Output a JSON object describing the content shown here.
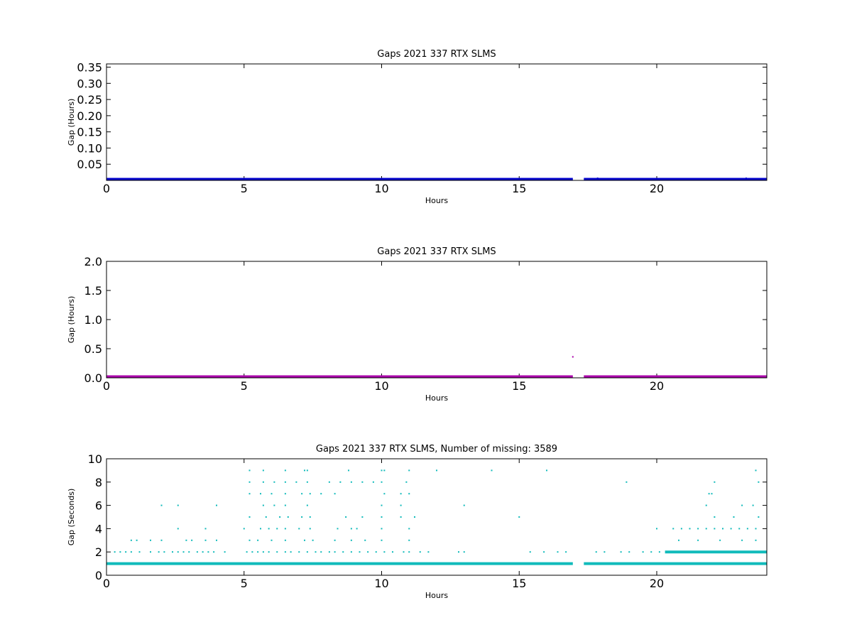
{
  "chart_data": [
    {
      "type": "scatter",
      "title": "Gaps 2021 337 RTX  SLMS",
      "xlabel": "Hours",
      "ylabel": "Gap (Hours)",
      "xlim": [
        0,
        24
      ],
      "ylim": [
        0,
        0.36
      ],
      "xticks": [
        "0",
        "5",
        "10",
        "15",
        "20"
      ],
      "yticks": [
        "0.05",
        "0.10",
        "0.15",
        "0.20",
        "0.25",
        "0.30",
        "0.35"
      ],
      "color": "#0000cc",
      "series": [
        {
          "segments": [
            [
              0,
              16.95,
              0.0003
            ],
            [
              17.35,
              24,
              0.0003
            ]
          ],
          "points": [
            [
              17.85,
              0.0008
            ],
            [
              23.25,
              0.001
            ]
          ]
        }
      ]
    },
    {
      "type": "scatter",
      "title": "Gaps 2021 337 RTX  SLMS",
      "xlabel": "Hours",
      "ylabel": "Gap (Hours)",
      "xlim": [
        0,
        24
      ],
      "ylim": [
        0,
        2.0
      ],
      "xticks": [
        "0",
        "5",
        "10",
        "15",
        "20"
      ],
      "yticks": [
        "0.0",
        "0.5",
        "1.0",
        "1.5",
        "2.0"
      ],
      "color": "#aa00aa",
      "series": [
        {
          "segments": [
            [
              0,
              16.95,
              0.0003
            ],
            [
              17.35,
              24,
              0.0003
            ]
          ],
          "points": [
            [
              16.95,
              0.36
            ]
          ]
        }
      ]
    },
    {
      "type": "scatter",
      "title": "Gaps 2021 337 RTX  SLMS, Number of missing: 3589",
      "xlabel": "Hours",
      "ylabel": "Gap (Seconds)",
      "xlim": [
        0,
        24
      ],
      "ylim": [
        0,
        10
      ],
      "xticks": [
        "0",
        "5",
        "10",
        "15",
        "20"
      ],
      "yticks": [
        "0",
        "2",
        "4",
        "6",
        "8",
        "10"
      ],
      "color": "#11bbbb",
      "series": [
        {
          "segments": [
            [
              0,
              16.95,
              1
            ],
            [
              17.35,
              24,
              1
            ],
            [
              20.3,
              24,
              2
            ]
          ],
          "points": [
            [
              0.3,
              2
            ],
            [
              0.5,
              2
            ],
            [
              0.7,
              2
            ],
            [
              0.9,
              2
            ],
            [
              1.2,
              2
            ],
            [
              1.6,
              2
            ],
            [
              1.9,
              2
            ],
            [
              2.1,
              2
            ],
            [
              2.4,
              2
            ],
            [
              2.6,
              2
            ],
            [
              2.8,
              2
            ],
            [
              3.0,
              2
            ],
            [
              3.3,
              2
            ],
            [
              3.5,
              2
            ],
            [
              3.7,
              2
            ],
            [
              3.9,
              2
            ],
            [
              4.3,
              2
            ],
            [
              5.1,
              2
            ],
            [
              5.3,
              2
            ],
            [
              5.5,
              2
            ],
            [
              5.7,
              2
            ],
            [
              5.9,
              2
            ],
            [
              6.2,
              2
            ],
            [
              6.5,
              2
            ],
            [
              6.7,
              2
            ],
            [
              7.0,
              2
            ],
            [
              7.3,
              2
            ],
            [
              7.6,
              2
            ],
            [
              7.8,
              2
            ],
            [
              8.1,
              2
            ],
            [
              8.3,
              2
            ],
            [
              8.6,
              2
            ],
            [
              8.9,
              2
            ],
            [
              9.2,
              2
            ],
            [
              9.5,
              2
            ],
            [
              9.8,
              2
            ],
            [
              10.1,
              2
            ],
            [
              10.4,
              2
            ],
            [
              10.8,
              2
            ],
            [
              11.0,
              2
            ],
            [
              11.4,
              2
            ],
            [
              11.7,
              2
            ],
            [
              12.8,
              2
            ],
            [
              13.0,
              2
            ],
            [
              15.4,
              2
            ],
            [
              15.9,
              2
            ],
            [
              16.4,
              2
            ],
            [
              16.7,
              2
            ],
            [
              17.8,
              2
            ],
            [
              18.1,
              2
            ],
            [
              18.7,
              2
            ],
            [
              19.0,
              2
            ],
            [
              19.5,
              2
            ],
            [
              19.8,
              2
            ],
            [
              20.1,
              2
            ],
            [
              0.9,
              3
            ],
            [
              1.1,
              3
            ],
            [
              1.6,
              3
            ],
            [
              2.0,
              3
            ],
            [
              2.9,
              3
            ],
            [
              3.1,
              3
            ],
            [
              3.6,
              3
            ],
            [
              4.0,
              3
            ],
            [
              5.2,
              3
            ],
            [
              5.5,
              3
            ],
            [
              6.0,
              3
            ],
            [
              6.5,
              3
            ],
            [
              7.2,
              3
            ],
            [
              7.5,
              3
            ],
            [
              8.3,
              3
            ],
            [
              8.9,
              3
            ],
            [
              9.4,
              3
            ],
            [
              10.0,
              3
            ],
            [
              11.0,
              3
            ],
            [
              20.8,
              3
            ],
            [
              21.5,
              3
            ],
            [
              22.3,
              3
            ],
            [
              23.1,
              3
            ],
            [
              23.6,
              3
            ],
            [
              2.6,
              4
            ],
            [
              3.6,
              4
            ],
            [
              5.0,
              4
            ],
            [
              5.6,
              4
            ],
            [
              5.9,
              4
            ],
            [
              6.2,
              4
            ],
            [
              6.5,
              4
            ],
            [
              7.0,
              4
            ],
            [
              7.4,
              4
            ],
            [
              8.4,
              4
            ],
            [
              8.9,
              4
            ],
            [
              9.1,
              4
            ],
            [
              10.0,
              4
            ],
            [
              11.0,
              4
            ],
            [
              20.0,
              4
            ],
            [
              20.6,
              4
            ],
            [
              20.9,
              4
            ],
            [
              21.2,
              4
            ],
            [
              21.5,
              4
            ],
            [
              21.8,
              4
            ],
            [
              22.1,
              4
            ],
            [
              22.4,
              4
            ],
            [
              22.7,
              4
            ],
            [
              23.0,
              4
            ],
            [
              23.3,
              4
            ],
            [
              23.6,
              4
            ],
            [
              5.2,
              5
            ],
            [
              5.8,
              5
            ],
            [
              6.3,
              5
            ],
            [
              6.6,
              5
            ],
            [
              7.1,
              5
            ],
            [
              7.4,
              5
            ],
            [
              8.7,
              5
            ],
            [
              9.3,
              5
            ],
            [
              10.0,
              5
            ],
            [
              10.7,
              5
            ],
            [
              11.2,
              5
            ],
            [
              15.0,
              5
            ],
            [
              22.1,
              5
            ],
            [
              22.8,
              5
            ],
            [
              23.7,
              5
            ],
            [
              2.0,
              6
            ],
            [
              2.6,
              6
            ],
            [
              4.0,
              6
            ],
            [
              5.7,
              6
            ],
            [
              6.1,
              6
            ],
            [
              6.5,
              6
            ],
            [
              7.3,
              6
            ],
            [
              10.0,
              6
            ],
            [
              10.7,
              6
            ],
            [
              13.0,
              6
            ],
            [
              21.8,
              6
            ],
            [
              23.1,
              6
            ],
            [
              23.5,
              6
            ],
            [
              5.2,
              7
            ],
            [
              5.6,
              7
            ],
            [
              6.0,
              7
            ],
            [
              6.5,
              7
            ],
            [
              7.1,
              7
            ],
            [
              7.4,
              7
            ],
            [
              7.8,
              7
            ],
            [
              8.3,
              7
            ],
            [
              10.1,
              7
            ],
            [
              10.7,
              7
            ],
            [
              11.0,
              7
            ],
            [
              21.9,
              7
            ],
            [
              22.0,
              7
            ],
            [
              5.2,
              8
            ],
            [
              5.7,
              8
            ],
            [
              6.1,
              8
            ],
            [
              6.5,
              8
            ],
            [
              6.9,
              8
            ],
            [
              7.3,
              8
            ],
            [
              8.1,
              8
            ],
            [
              8.5,
              8
            ],
            [
              8.9,
              8
            ],
            [
              9.3,
              8
            ],
            [
              9.7,
              8
            ],
            [
              10.0,
              8
            ],
            [
              10.9,
              8
            ],
            [
              18.9,
              8
            ],
            [
              22.1,
              8
            ],
            [
              23.7,
              8
            ],
            [
              5.2,
              9
            ],
            [
              5.7,
              9
            ],
            [
              6.5,
              9
            ],
            [
              7.2,
              9
            ],
            [
              7.3,
              9
            ],
            [
              8.8,
              9
            ],
            [
              10.0,
              9
            ],
            [
              10.1,
              9
            ],
            [
              11.0,
              9
            ],
            [
              12.0,
              9
            ],
            [
              14.0,
              9
            ],
            [
              16.0,
              9
            ],
            [
              23.6,
              9
            ]
          ]
        }
      ]
    }
  ]
}
